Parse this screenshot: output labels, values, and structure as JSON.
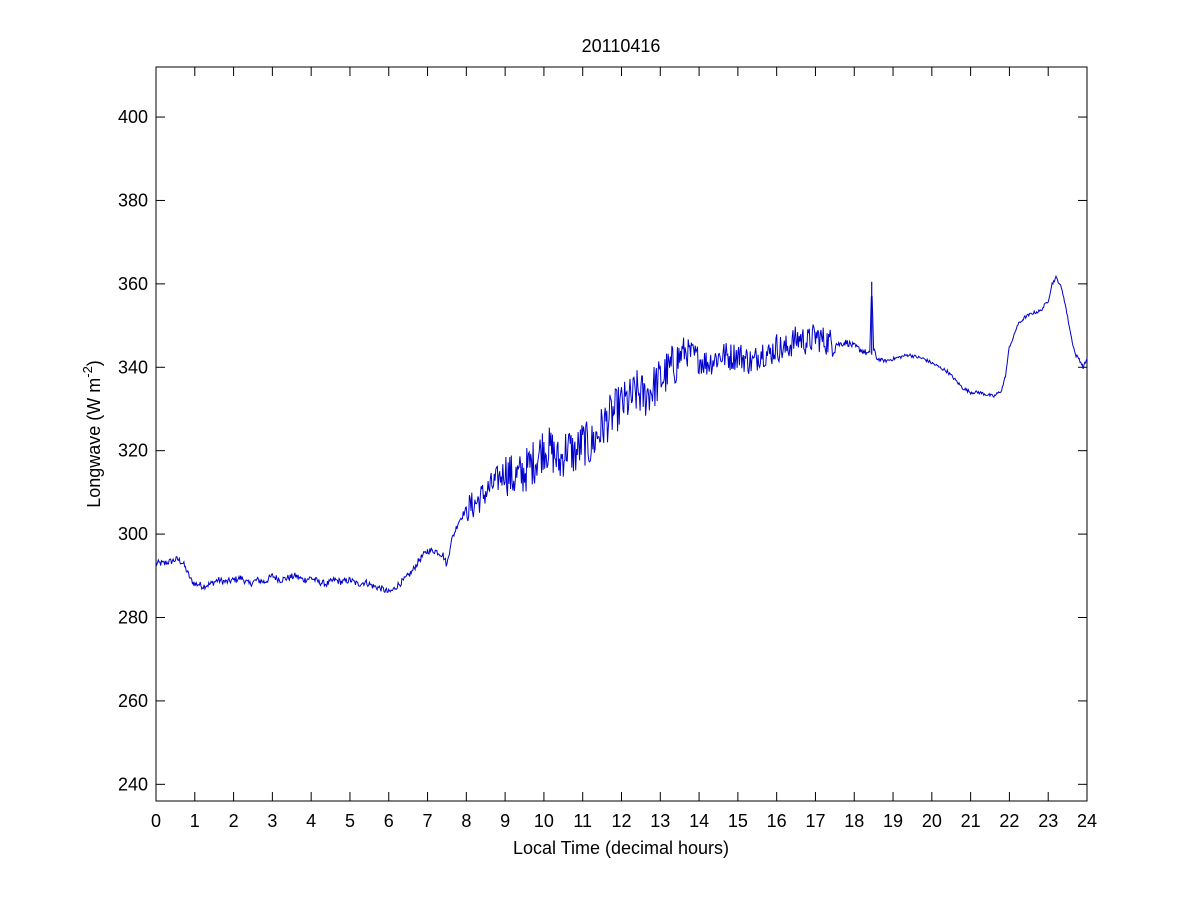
{
  "chart_data": {
    "type": "line",
    "title": "20110416",
    "xlabel": "Local Time (decimal hours)",
    "ylabel": {
      "prefix": "Longwave (W m",
      "superscript": "-2",
      "suffix": ")"
    },
    "xlim": [
      0,
      24
    ],
    "ylim": [
      236,
      412
    ],
    "xticks": [
      0,
      1,
      2,
      3,
      4,
      5,
      6,
      7,
      8,
      9,
      10,
      11,
      12,
      13,
      14,
      15,
      16,
      17,
      18,
      19,
      20,
      21,
      22,
      23,
      24
    ],
    "yticks": [
      240,
      260,
      280,
      300,
      320,
      340,
      360,
      380,
      400
    ],
    "grid": false,
    "legend": "none",
    "colors": {
      "line": "#0000cc",
      "axes": "#000000",
      "background": "#ffffff"
    },
    "series": [
      {
        "color": "#0000cc",
        "x": [
          0.0,
          0.2,
          0.4,
          0.55,
          0.7,
          0.8,
          0.9,
          1.0,
          1.1,
          1.2,
          1.4,
          1.6,
          1.8,
          2.0,
          2.2,
          2.4,
          2.6,
          2.8,
          3.0,
          3.2,
          3.4,
          3.6,
          3.8,
          4.0,
          4.2,
          4.4,
          4.6,
          4.8,
          5.0,
          5.2,
          5.4,
          5.6,
          5.8,
          6.0,
          6.1,
          6.2,
          6.4,
          6.6,
          6.8,
          7.0,
          7.2,
          7.4,
          7.5,
          7.6,
          7.8,
          8.0,
          8.2,
          8.4,
          8.6,
          8.8,
          9.0,
          9.2,
          9.4,
          9.6,
          9.8,
          10.0,
          10.2,
          10.4,
          10.6,
          10.8,
          11.0,
          11.2,
          11.4,
          11.6,
          11.8,
          12.0,
          12.2,
          12.4,
          12.6,
          12.8,
          13.0,
          13.2,
          13.4,
          13.6,
          13.8,
          14.0,
          14.2,
          14.4,
          14.6,
          14.8,
          15.0,
          15.2,
          15.4,
          15.6,
          15.8,
          16.0,
          16.2,
          16.4,
          16.6,
          16.8,
          17.0,
          17.2,
          17.4,
          17.6,
          17.8,
          18.0,
          18.2,
          18.4,
          18.45,
          18.5,
          18.55,
          18.6,
          18.8,
          19.0,
          19.2,
          19.4,
          19.6,
          19.8,
          20.0,
          20.2,
          20.4,
          20.6,
          20.8,
          21.0,
          21.2,
          21.4,
          21.6,
          21.8,
          21.9,
          22.0,
          22.1,
          22.2,
          22.4,
          22.6,
          22.8,
          23.0,
          23.1,
          23.2,
          23.3,
          23.4,
          23.5,
          23.6,
          23.7,
          23.8,
          23.9,
          24.0
        ],
        "y": [
          293,
          293,
          293.5,
          294,
          293,
          291,
          289,
          288,
          288,
          287.5,
          288,
          289,
          288.5,
          289,
          289.5,
          288,
          289,
          288.5,
          290,
          289,
          289.5,
          290,
          289,
          289.5,
          288.5,
          288,
          289,
          288.5,
          289,
          288,
          288.5,
          287.5,
          287,
          286,
          286.5,
          287.5,
          289,
          291,
          294,
          296,
          296,
          295,
          292.5,
          298,
          303,
          306,
          307,
          309,
          311,
          313,
          315,
          313.5,
          314,
          316,
          318,
          321,
          320,
          317,
          321,
          319,
          322,
          321,
          324,
          327,
          329,
          331,
          332,
          334,
          333,
          335,
          337,
          339,
          341,
          344,
          343,
          342,
          341,
          342,
          343,
          342.5,
          343,
          342,
          341,
          344,
          343,
          345,
          344,
          346,
          347,
          346,
          347.5,
          346.5,
          346,
          345.5,
          346,
          345,
          344,
          343,
          360.5,
          344,
          343,
          342,
          341.5,
          342,
          342.5,
          343,
          342.5,
          342,
          341,
          340,
          339,
          337,
          335,
          334,
          334,
          333.5,
          333,
          334.5,
          338,
          345,
          347,
          350,
          352,
          353,
          353.5,
          356,
          360,
          361.5,
          360,
          357,
          352,
          347,
          343,
          342,
          340,
          342
        ]
      }
    ],
    "annotations": []
  }
}
